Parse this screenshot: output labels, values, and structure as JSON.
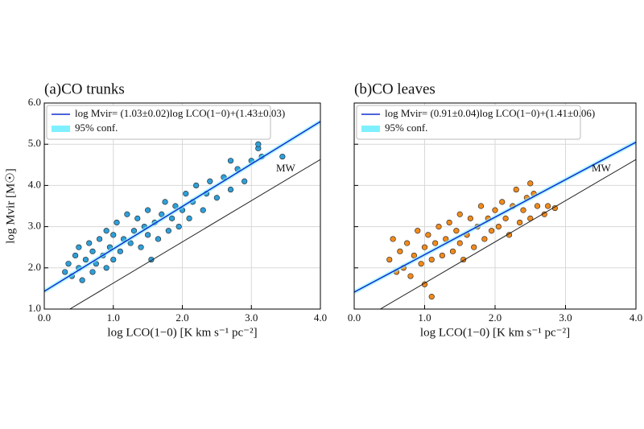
{
  "chart_data": [
    {
      "type": "scatter",
      "title": "(a)CO trunks",
      "xlabel": "log LCO(1−0) [K km s⁻¹ pc⁻²]",
      "ylabel": "log Mvir [M☉]",
      "xlim": [
        0,
        4
      ],
      "ylim": [
        1,
        6
      ],
      "xticks": [
        {
          "value": 0,
          "label": "0.0"
        },
        {
          "value": 1,
          "label": "1.0"
        },
        {
          "value": 2,
          "label": "2.0"
        },
        {
          "value": 3,
          "label": "3.0"
        },
        {
          "value": 4,
          "label": "4.0"
        }
      ],
      "yticks": [
        {
          "value": 1,
          "label": "1.0"
        },
        {
          "value": 2,
          "label": "2.0"
        },
        {
          "value": 3,
          "label": "3.0"
        },
        {
          "value": 4,
          "label": "4.0"
        },
        {
          "value": 5,
          "label": "5.0"
        },
        {
          "value": 6,
          "label": "6.0"
        }
      ],
      "ytick_labels": true,
      "grid": true,
      "conf_band": {
        "label": "95% conf.",
        "color": "#7ff0ff"
      },
      "series": [
        {
          "type": "scatter",
          "color": "#2f9fd8",
          "x": [
            0.3,
            0.35,
            0.4,
            0.45,
            0.5,
            0.5,
            0.55,
            0.6,
            0.65,
            0.7,
            0.7,
            0.75,
            0.8,
            0.85,
            0.9,
            0.9,
            0.95,
            1.0,
            1.0,
            1.05,
            1.1,
            1.15,
            1.2,
            1.25,
            1.3,
            1.35,
            1.4,
            1.45,
            1.5,
            1.5,
            1.55,
            1.6,
            1.65,
            1.7,
            1.75,
            1.8,
            1.85,
            1.9,
            1.95,
            2.0,
            2.05,
            2.1,
            2.15,
            2.2,
            2.3,
            2.35,
            2.4,
            2.5,
            2.6,
            2.7,
            2.8,
            2.9,
            3.0,
            3.1,
            3.15,
            3.45,
            2.7,
            3.1
          ],
          "values": [
            1.9,
            2.1,
            1.8,
            2.3,
            2.0,
            2.5,
            1.7,
            2.2,
            2.6,
            1.9,
            2.4,
            2.1,
            2.7,
            2.3,
            2.0,
            2.9,
            2.5,
            2.2,
            2.8,
            3.1,
            2.4,
            2.7,
            3.3,
            2.6,
            2.9,
            3.2,
            2.5,
            3.0,
            2.8,
            3.4,
            2.2,
            3.1,
            2.7,
            3.3,
            3.6,
            2.9,
            3.2,
            3.5,
            3.0,
            3.4,
            3.8,
            3.2,
            3.6,
            4.0,
            3.4,
            3.8,
            4.1,
            3.7,
            4.2,
            3.9,
            4.4,
            4.1,
            4.6,
            4.9,
            4.7,
            4.7,
            4.6,
            5.0
          ]
        },
        {
          "type": "line",
          "name": "log Mvir= (1.03±0.02)log LCO(1−0)+(1.43±0.03)",
          "color": "#1030d0",
          "legend": true,
          "x": [
            0,
            4
          ],
          "values": [
            1.43,
            5.55
          ]
        },
        {
          "type": "line",
          "name": "MW",
          "color": "#222222",
          "legend": false,
          "x": [
            0.37,
            4
          ],
          "values": [
            1.0,
            4.63
          ]
        }
      ]
    },
    {
      "type": "scatter",
      "title": "(b)CO leaves",
      "xlabel": "log LCO(1−0) [K km s⁻¹ pc⁻²]",
      "xlim": [
        0,
        4
      ],
      "ylim": [
        1,
        6
      ],
      "xticks": [
        {
          "value": 0,
          "label": "0.0"
        },
        {
          "value": 1,
          "label": "1.0"
        },
        {
          "value": 2,
          "label": "2.0"
        },
        {
          "value": 3,
          "label": "3.0"
        },
        {
          "value": 4,
          "label": "4.0"
        }
      ],
      "yticks": [
        1,
        2,
        3,
        4,
        5,
        6
      ],
      "ytick_labels": false,
      "grid": true,
      "conf_band": {
        "label": "95% conf.",
        "color": "#7ff0ff"
      },
      "series": [
        {
          "type": "scatter",
          "color": "#f08a1c",
          "x": [
            0.5,
            0.55,
            0.6,
            0.65,
            0.7,
            0.75,
            0.8,
            0.85,
            0.9,
            0.95,
            1.0,
            1.0,
            1.05,
            1.1,
            1.1,
            1.15,
            1.2,
            1.25,
            1.3,
            1.35,
            1.4,
            1.45,
            1.5,
            1.5,
            1.55,
            1.6,
            1.65,
            1.7,
            1.75,
            1.8,
            1.85,
            1.9,
            1.95,
            2.0,
            2.05,
            2.1,
            2.15,
            2.2,
            2.25,
            2.3,
            2.35,
            2.4,
            2.45,
            2.5,
            2.55,
            2.6,
            2.7,
            2.75,
            2.85,
            2.5
          ],
          "values": [
            2.2,
            2.7,
            1.9,
            2.4,
            2.0,
            2.6,
            1.8,
            2.3,
            2.9,
            2.1,
            2.5,
            1.6,
            2.8,
            2.2,
            1.3,
            2.6,
            3.0,
            2.3,
            2.7,
            3.1,
            2.4,
            2.9,
            2.6,
            3.3,
            2.2,
            2.8,
            3.2,
            2.5,
            3.0,
            3.5,
            2.7,
            3.2,
            2.9,
            3.4,
            3.0,
            3.6,
            3.2,
            2.8,
            3.5,
            3.9,
            3.1,
            3.4,
            3.7,
            3.2,
            3.8,
            3.5,
            3.3,
            3.5,
            3.45,
            4.05
          ]
        },
        {
          "type": "line",
          "name": "log Mvir= (0.91±0.04)log LCO(1−0)+(1.41±0.06)",
          "color": "#1030d0",
          "legend": true,
          "x": [
            0,
            4
          ],
          "values": [
            1.41,
            5.05
          ]
        },
        {
          "type": "line",
          "name": "MW",
          "color": "#222222",
          "legend": false,
          "x": [
            0.37,
            4
          ],
          "values": [
            1.0,
            4.63
          ]
        }
      ]
    }
  ]
}
